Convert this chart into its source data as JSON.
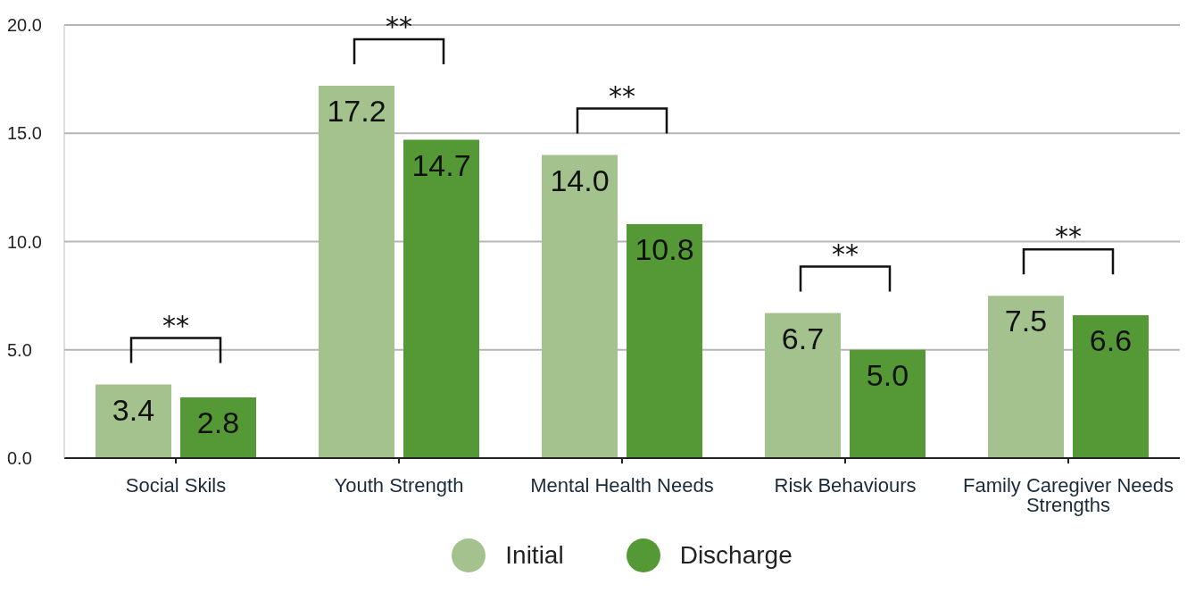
{
  "chart_data": {
    "type": "bar",
    "categories": [
      "Social Skils",
      "Youth Strength",
      "Mental Health Needs",
      "Risk Behaviours",
      "Family Caregiver Needs Strengths"
    ],
    "series": [
      {
        "name": "Initial",
        "color": "#a3c28d",
        "values": [
          3.4,
          17.2,
          14.0,
          6.7,
          7.5
        ],
        "value_labels": [
          "3.4",
          "17.2",
          "14.0",
          "6.7",
          "7.5"
        ]
      },
      {
        "name": "Discharge",
        "color": "#559936",
        "values": [
          2.8,
          14.7,
          10.8,
          5.0,
          6.6
        ],
        "value_labels": [
          "2.8",
          "14.7",
          "10.8",
          "5.0",
          "6.6"
        ]
      }
    ],
    "ylim": [
      0,
      20
    ],
    "yticks": [
      {
        "value": 0,
        "label": "0.0"
      },
      {
        "value": 5,
        "label": "5.0"
      },
      {
        "value": 10,
        "label": "10.0"
      },
      {
        "value": 15,
        "label": "15.0"
      },
      {
        "value": 20,
        "label": "20.0"
      }
    ],
    "grid": "y",
    "legend": "bottom",
    "annotations": [
      "**",
      "**",
      "**",
      "**",
      "**"
    ]
  }
}
